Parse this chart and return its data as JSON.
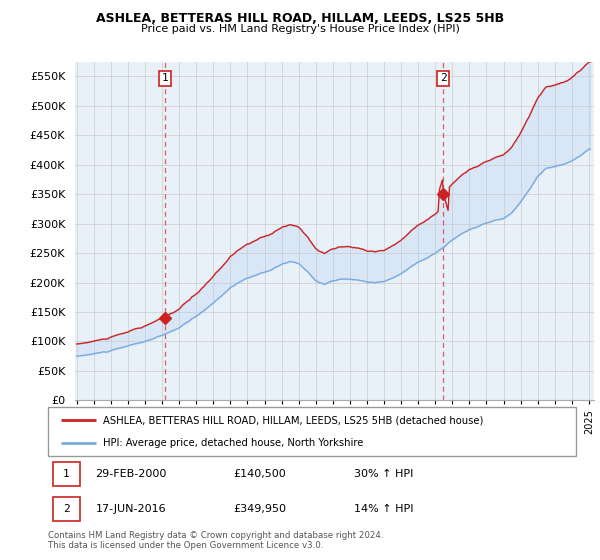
{
  "title": "ASHLEA, BETTERAS HILL ROAD, HILLAM, LEEDS, LS25 5HB",
  "subtitle": "Price paid vs. HM Land Registry's House Price Index (HPI)",
  "legend_line1": "ASHLEA, BETTERAS HILL ROAD, HILLAM, LEEDS, LS25 5HB (detached house)",
  "legend_line2": "HPI: Average price, detached house, North Yorkshire",
  "annotation1_label": "1",
  "annotation1_date": "29-FEB-2000",
  "annotation1_price": "£140,500",
  "annotation1_hpi": "30% ↑ HPI",
  "annotation2_label": "2",
  "annotation2_date": "17-JUN-2016",
  "annotation2_price": "£349,950",
  "annotation2_hpi": "14% ↑ HPI",
  "footer": "Contains HM Land Registry data © Crown copyright and database right 2024.\nThis data is licensed under the Open Government Licence v3.0.",
  "hpi_color": "#7aaadd",
  "price_color": "#cc2222",
  "fill_color": "#ddeeff",
  "vline_color": "#dd4444",
  "bg_color": "#e8f0f8",
  "ylim_min": 0,
  "ylim_max": 575000,
  "yticks": [
    0,
    50000,
    100000,
    150000,
    200000,
    250000,
    300000,
    350000,
    400000,
    450000,
    500000,
    550000
  ],
  "xlim_min": 1994.9,
  "xlim_max": 2025.3,
  "sale1_x": 2000.167,
  "sale1_y": 140500,
  "sale2_x": 2016.46,
  "sale2_y": 349950
}
